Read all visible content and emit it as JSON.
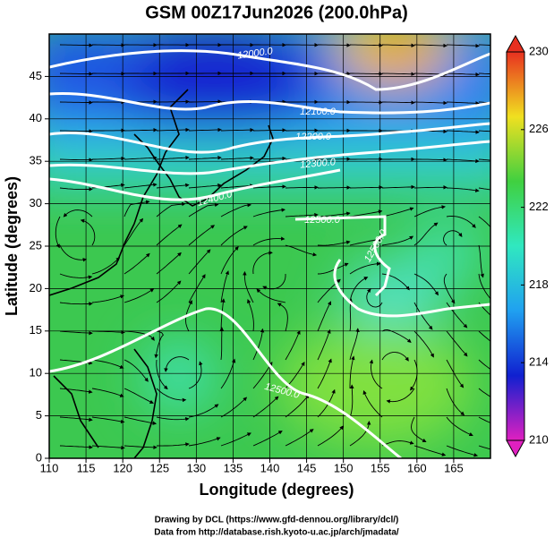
{
  "chart_data": {
    "type": "map",
    "title": "GSM 00Z17Jun2026 (200.0hPa)",
    "x_label": "Longitude (degrees)",
    "y_label": "Latitude  (degrees)",
    "xlim": [
      110,
      170
    ],
    "xticks": [
      110,
      115,
      120,
      125,
      130,
      135,
      140,
      145,
      150,
      155,
      160,
      165
    ],
    "ylim": [
      0,
      50
    ],
    "yticks": [
      0,
      5,
      10,
      15,
      20,
      25,
      30,
      35,
      40,
      45
    ],
    "grid": true,
    "colorbar": {
      "lim": [
        210,
        230
      ],
      "ticks": [
        210,
        214,
        218,
        222,
        226,
        230
      ],
      "colors": [
        "#e020c0",
        "#1020d0",
        "#20a0f0",
        "#30e8c0",
        "#40d040",
        "#f0e020",
        "#e83020"
      ]
    },
    "contour_labels": [
      "12000.0",
      "12100.0",
      "12200.0",
      "12300.0",
      "12400.0",
      "12500.0",
      "12500.0",
      "12500.0"
    ],
    "credits": [
      "Drawing by DCL (https://www.gfd-dennou.org/library/dcl/)",
      "Data from http://database.rish.kyoto-u.ac.jp/arch/jmadata/"
    ]
  }
}
